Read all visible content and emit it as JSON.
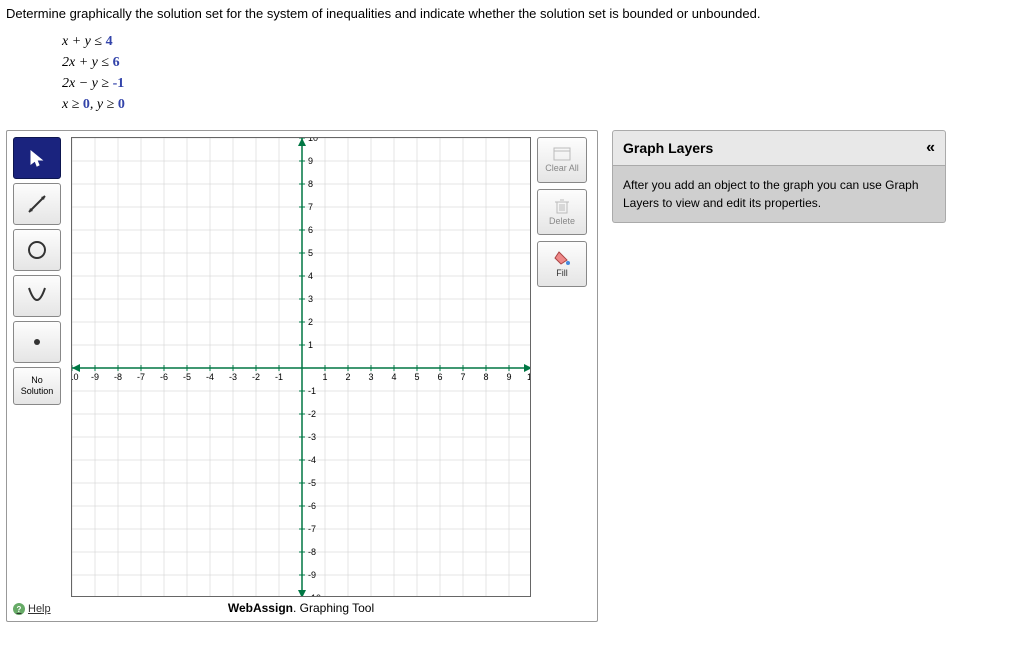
{
  "question": "Determine graphically the solution set for the system of inequalities and indicate whether the solution set is bounded or unbounded.",
  "inequalities": [
    {
      "lhs": "x + y",
      "op": "≤",
      "rhs": "4"
    },
    {
      "lhs": "2x + y",
      "op": "≤",
      "rhs": "6"
    },
    {
      "lhs": "2x − y",
      "op": "≥",
      "rhs": "-1"
    },
    {
      "lhs": "x ≥",
      "mid": "0",
      "suffix": ", y ≥",
      "rhs": "0"
    }
  ],
  "graph": {
    "xmin": -10,
    "xmax": 10,
    "ymin": -10,
    "ymax": 10,
    "xtick_step": 1,
    "ytick_step": 1,
    "axis_color": "#007744",
    "grid_color": "#cccccc",
    "background": "#ffffff",
    "tick_fontsize": 9
  },
  "tools": {
    "pointer": "pointer-tool",
    "line": "line-tool",
    "circle": "circle-tool",
    "parabola": "parabola-tool",
    "point": "point-tool",
    "nosolution_line1": "No",
    "nosolution_line2": "Solution"
  },
  "side": {
    "clearall": "Clear All",
    "delete": "Delete",
    "fill": "Fill"
  },
  "layers": {
    "title": "Graph Layers",
    "hint": "After you add an object to the graph you can use Graph Layers to view and edit its properties."
  },
  "help": "Help",
  "footer_brand1": "Web",
  "footer_brand2": "Assign",
  "footer_suffix": ". Graphing Tool"
}
